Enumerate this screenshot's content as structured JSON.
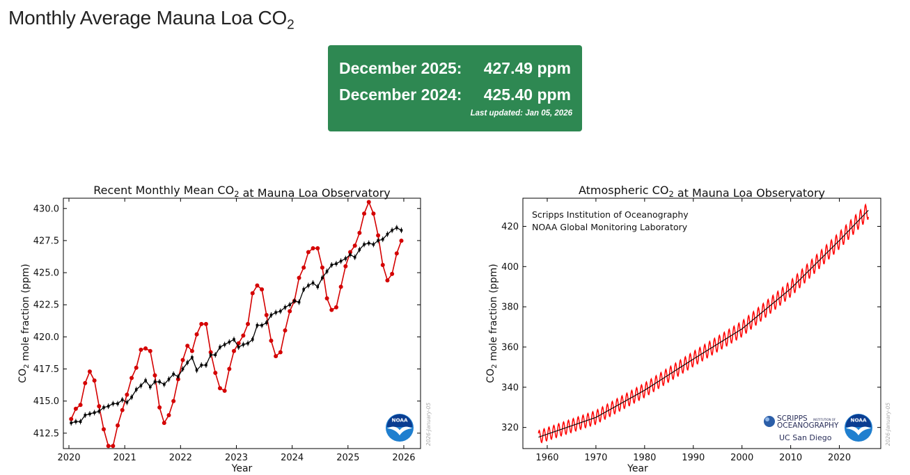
{
  "page": {
    "title_main": "Monthly Average Mauna Loa CO",
    "title_sub": "2"
  },
  "summary": {
    "row1_label": "December 2025:",
    "row1_value": "427.49 ppm",
    "row2_label": "December 2024:",
    "row2_value": "425.40 ppm",
    "updated": "Last updated: Jan 05, 2026"
  },
  "chart_data": [
    {
      "type": "line",
      "title": "Recent Monthly Mean CO₂ at Mauna Loa Observatory",
      "xlabel": "Year",
      "ylabel": "CO₂ mole fraction (ppm)",
      "xlim": [
        2019.9,
        2026.3
      ],
      "ylim": [
        411.3,
        430.8
      ],
      "xticks": [
        2020,
        2021,
        2022,
        2023,
        2024,
        2025,
        2026
      ],
      "yticks": [
        412.5,
        415.0,
        417.5,
        420.0,
        422.5,
        425.0,
        427.5,
        430.0
      ],
      "ytick_labels": [
        "412.5",
        "415.0",
        "417.5",
        "420.0",
        "422.5",
        "425.0",
        "427.5",
        "430.0"
      ],
      "side_text": "2026-January-05",
      "logo": "NOAA",
      "series": [
        {
          "color": "#d40000",
          "x_start": 2020.04,
          "x_step": 0.0833333,
          "values": [
            413.6,
            414.4,
            414.7,
            416.4,
            417.3,
            416.6,
            414.6,
            412.8,
            411.5,
            411.5,
            413.1,
            414.3,
            415.5,
            416.8,
            417.6,
            419.0,
            419.1,
            418.9,
            417.0,
            414.5,
            413.3,
            413.9,
            415.0,
            416.7,
            418.2,
            419.3,
            418.9,
            420.2,
            421.0,
            421.0,
            418.8,
            417.2,
            416.0,
            415.8,
            417.5,
            418.9,
            419.5,
            420.1,
            421.0,
            423.4,
            424.0,
            423.7,
            421.7,
            419.7,
            418.5,
            418.8,
            420.5,
            422.0,
            422.8,
            424.6,
            425.4,
            426.6,
            426.9,
            426.9,
            425.4,
            423.0,
            422.1,
            422.3,
            423.9,
            425.5,
            426.6,
            427.1,
            428.1,
            429.6,
            430.5,
            429.6,
            427.9,
            425.6,
            424.4,
            424.9,
            426.5,
            427.49
          ]
        },
        {
          "color": "#000000",
          "x_start": 2020.04,
          "x_step": 0.0833333,
          "values": [
            413.3,
            413.4,
            413.4,
            413.9,
            414.0,
            414.1,
            414.2,
            414.5,
            414.6,
            414.8,
            414.8,
            415.1,
            414.9,
            415.3,
            415.9,
            416.2,
            416.6,
            416.1,
            416.5,
            416.5,
            416.3,
            416.7,
            417.1,
            416.9,
            417.5,
            418.0,
            418.4,
            417.4,
            417.8,
            417.8,
            418.6,
            418.6,
            419.2,
            419.4,
            419.6,
            419.8,
            419.2,
            419.4,
            419.5,
            419.8,
            420.9,
            420.9,
            421.1,
            421.7,
            421.9,
            422.0,
            422.3,
            422.5,
            422.8,
            422.7,
            423.7,
            424.0,
            424.2,
            423.9,
            424.6,
            425.1,
            425.6,
            425.7,
            425.9,
            426.1,
            426.4,
            426.2,
            426.8,
            427.2,
            427.3,
            427.2,
            427.5,
            427.6,
            428.0,
            428.3,
            428.5,
            428.3
          ]
        }
      ]
    },
    {
      "type": "line",
      "title": "Atmospheric CO₂ at Mauna Loa Observatory",
      "xlabel": "Year",
      "ylabel": "CO₂ mole fraction (ppm)",
      "xlim": [
        1955.0,
        2028.5
      ],
      "ylim": [
        309.5,
        434.0
      ],
      "xticks": [
        1960,
        1970,
        1980,
        1990,
        2000,
        2010,
        2020
      ],
      "yticks": [
        320,
        340,
        360,
        380,
        400,
        420
      ],
      "annotations": [
        "Scripps Institution of Oceanography",
        "NOAA Global Monitoring Laboratory"
      ],
      "side_text": "2026-January-05",
      "logos": [
        "SCRIPPS INSTITUTION OF OCEANOGRAPHY",
        "UC San Diego",
        "NOAA"
      ],
      "logo_text": {
        "scripps": "SCRIPPS",
        "scripps_small": "INSTITUTION OF",
        "scripps_line2": "OCEANOGRAPHY",
        "ucsd": "UC San Diego"
      },
      "series": [
        {
          "color": "#ff0000",
          "x_start": 1958.2,
          "x_end": 2025.96,
          "n_points": 814,
          "trend_anchors": [
            [
              1958,
              315.0
            ],
            [
              1970,
              325.0
            ],
            [
              1980,
              338.5
            ],
            [
              1990,
              354.0
            ],
            [
              2000,
              369.0
            ],
            [
              2010,
              389.0
            ],
            [
              2020,
              413.0
            ],
            [
              2025.96,
              428.0
            ]
          ],
          "seasonal_amplitude_ppm": 3.2
        },
        {
          "color": "#000000",
          "x_start": 1958.2,
          "x_end": 2025.96,
          "n_points": 814,
          "trend_anchors": [
            [
              1958,
              315.0
            ],
            [
              1970,
              325.0
            ],
            [
              1980,
              338.5
            ],
            [
              1990,
              354.0
            ],
            [
              2000,
              369.0
            ],
            [
              2010,
              389.0
            ],
            [
              2020,
              413.0
            ],
            [
              2025.96,
              428.0
            ]
          ],
          "seasonal_amplitude_ppm": 0
        }
      ]
    }
  ]
}
